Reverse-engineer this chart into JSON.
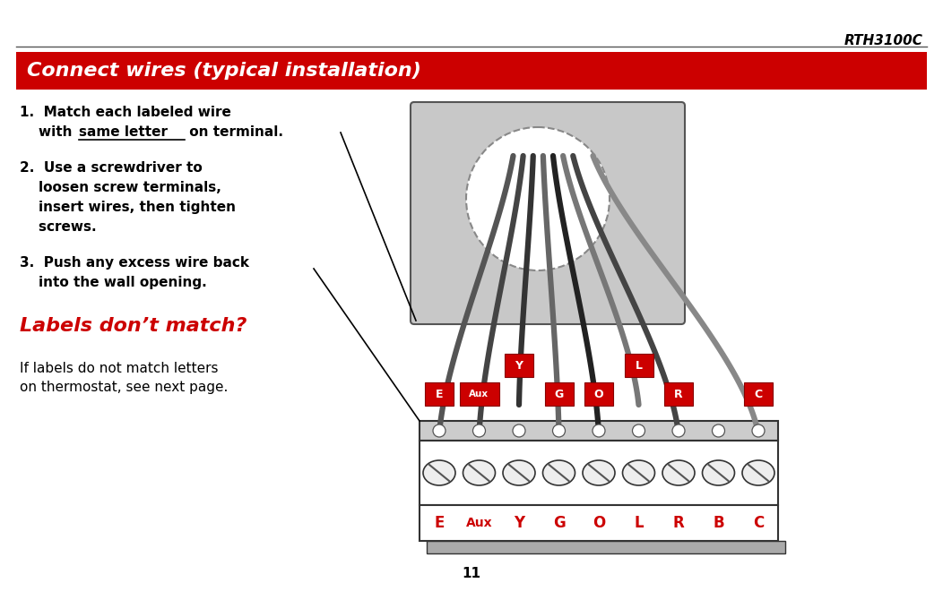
{
  "title": "Connect wires (typical installation)",
  "model": "RTH3100C",
  "red_color": "#CC0000",
  "bg_color": "#FFFFFF",
  "terminal_labels": [
    "E",
    "Aux",
    "Y",
    "G",
    "O",
    "L",
    "R",
    "B",
    "C"
  ],
  "subheading": "Labels don’t match?",
  "subtext": "If labels do not match letters\non thermostat, see next page.",
  "page_number": "11",
  "fig_width": 10.52,
  "fig_height": 6.7,
  "dpi": 100
}
